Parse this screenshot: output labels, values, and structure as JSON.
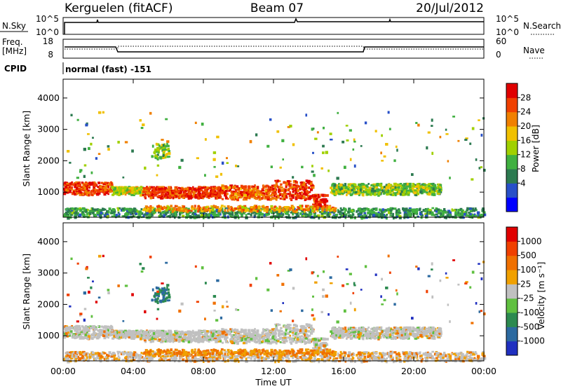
{
  "header": {
    "station": "Kerguelen (fitACF)",
    "beam": "Beam 07",
    "date": "20/Jul/2012"
  },
  "top_panels": {
    "nsky_label": "N.Sky",
    "nsky_ticks": [
      "10^5",
      "10^0"
    ],
    "nsearch_label": "N.Search",
    "nsearch_ticks": [
      "10^5",
      "10^0"
    ],
    "freq_label_1": "Freq.",
    "freq_label_2": "[MHz]",
    "freq_ticks": [
      "18",
      "8"
    ],
    "nave_label": "Nave",
    "nave_ticks": [
      "60",
      "0"
    ],
    "cpid_label": "CPID",
    "cpid_value": "normal (fast) -151"
  },
  "chart_data": [
    {
      "type": "heatmap",
      "name": "power",
      "ylabel": "Slant Range [km]",
      "ylim": [
        200,
        4600
      ],
      "y_ticks": [
        "4000",
        "3000",
        "2000",
        "1000"
      ],
      "colorbar_label": "Power [dB]",
      "colorbar_ticks": [
        "28",
        "24",
        "20",
        "16",
        "12",
        "8",
        "4"
      ],
      "colorbar_colors": [
        "#0000ff",
        "#2850c8",
        "#2c7a50",
        "#40b040",
        "#a0d000",
        "#f0c000",
        "#f08000",
        "#f04000",
        "#e00000"
      ],
      "scatter_x_range_h": [
        0,
        24
      ],
      "echo_bands": [
        {
          "x": [
            0.0,
            2.7
          ],
          "range": [
            950,
            1350
          ],
          "power": 24
        },
        {
          "x": [
            2.7,
            4.5
          ],
          "range": [
            950,
            1200
          ],
          "power": 14
        },
        {
          "x": [
            4.5,
            9.0
          ],
          "range": [
            850,
            1200
          ],
          "power": 24
        },
        {
          "x": [
            9.0,
            12.0
          ],
          "range": [
            800,
            1250
          ],
          "power": 22
        },
        {
          "x": [
            12.0,
            14.2
          ],
          "range": [
            800,
            1400
          ],
          "power": 24
        },
        {
          "x": [
            14.2,
            15.0
          ],
          "range": [
            550,
            950
          ],
          "power": 26
        },
        {
          "x": [
            15.2,
            21.5
          ],
          "range": [
            950,
            1300
          ],
          "power": 12
        }
      ]
    },
    {
      "type": "heatmap",
      "name": "velocity",
      "ylabel": "Slant Range [km]",
      "ylim": [
        200,
        4600
      ],
      "y_ticks": [
        "4000",
        "3000",
        "2000",
        "1000"
      ],
      "colorbar_label": "Velocity [m s⁻¹]",
      "colorbar_ticks": [
        "1000",
        "500",
        "100",
        "25",
        "-25",
        "-100",
        "-500",
        "-1000"
      ],
      "colorbar_colors": [
        "#2030c0",
        "#2c6aa0",
        "#2c8a50",
        "#60c040",
        "#c0c0c0",
        "#f0a000",
        "#f07000",
        "#f04000",
        "#e00000"
      ],
      "x_ticks": [
        "00:00",
        "04:00",
        "08:00",
        "12:00",
        "16:00",
        "20:00",
        "00:00"
      ],
      "xlabel": "Time UT",
      "xlim": [
        0,
        24
      ]
    }
  ]
}
